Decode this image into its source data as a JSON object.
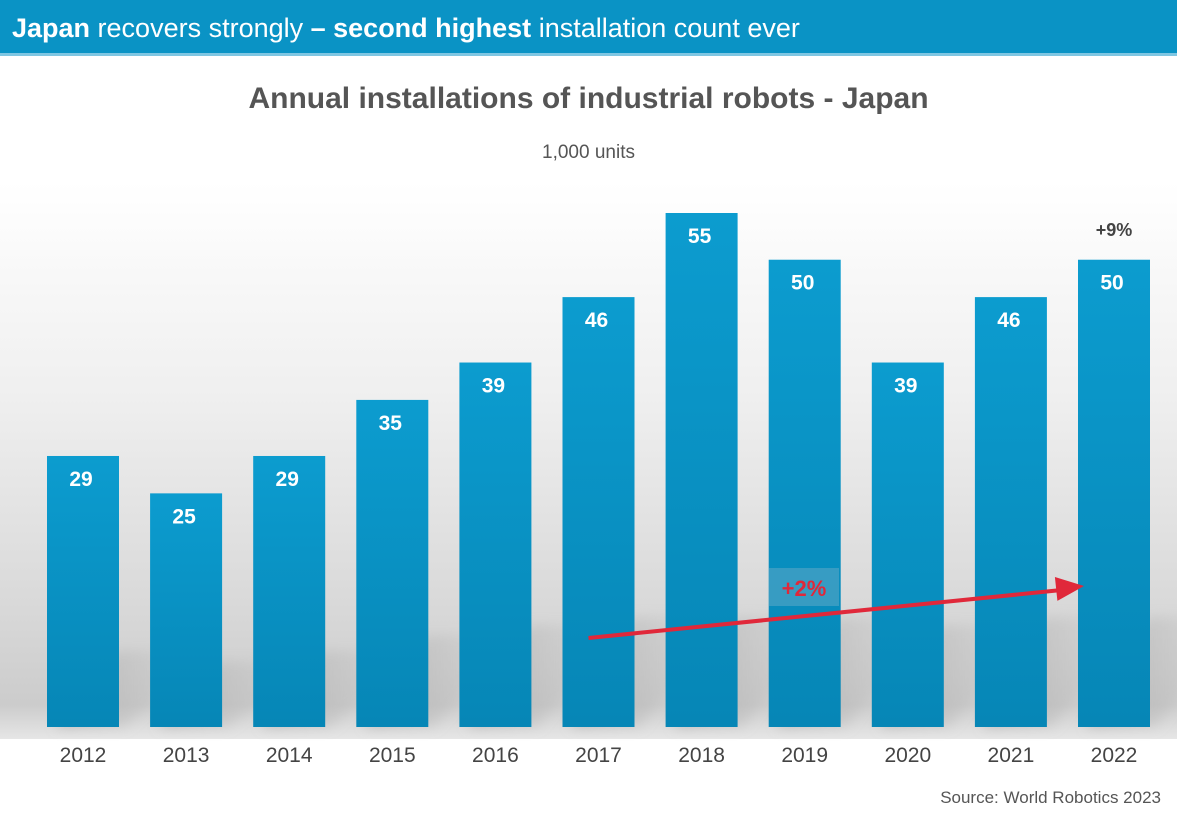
{
  "banner": {
    "part1": "Japan",
    "part2": " recovers strongly ",
    "part3": "– second highest",
    "part4": " installation count ever"
  },
  "source": "Source: World Robotics 2023",
  "chart_data": {
    "type": "bar",
    "title": "Annual installations of industrial robots - Japan",
    "subtitle": "1,000 units",
    "categories": [
      "2012",
      "2013",
      "2014",
      "2015",
      "2016",
      "2017",
      "2018",
      "2019",
      "2020",
      "2021",
      "2022"
    ],
    "values": [
      29,
      25,
      29,
      35,
      39,
      46,
      55,
      50,
      39,
      46,
      50
    ],
    "ylim": [
      0,
      60
    ],
    "grid": false,
    "bar_color": "#0a93c5",
    "annotations": [
      {
        "text": "+9%",
        "target": "2022"
      },
      {
        "text": "+2%",
        "type": "trend-arrow",
        "from": "2017",
        "to": "2022",
        "color": "#e0283a"
      }
    ]
  }
}
